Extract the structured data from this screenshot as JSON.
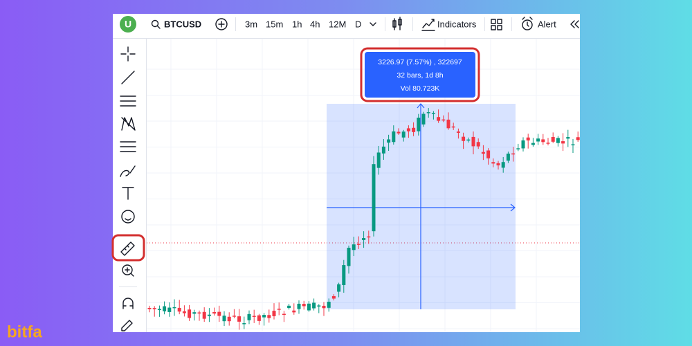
{
  "logo": "bitfa",
  "toolbar": {
    "avatar": "U",
    "symbol": "BTCUSD",
    "intervals": [
      "3m",
      "15m",
      "1h",
      "4h",
      "12M",
      "D"
    ],
    "active_interval": 2,
    "indicators": "Indicators",
    "alert": "Alert"
  },
  "measure": {
    "lines": [
      "3226.97 (7.57%) , 322697",
      "32 bars, 1d 8h",
      "Vol 80.723K"
    ]
  }
}
